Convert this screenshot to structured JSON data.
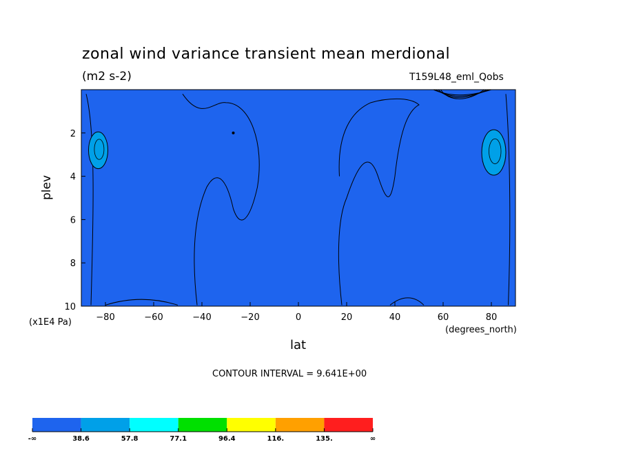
{
  "chart_data": {
    "type": "contour",
    "title": "zonal wind variance transient mean merdional",
    "units": "(m2 s-2)",
    "run_label": "T159L48_eml_Qobs",
    "xlabel": "lat",
    "x_unit": "(degrees_north)",
    "ylabel": "plev",
    "y_unit": "(x1E4 Pa)",
    "xlim": [
      -90,
      90
    ],
    "ylim": [
      0,
      10
    ],
    "y_inverted": true,
    "x_ticks": [
      -80,
      -60,
      -40,
      -20,
      0,
      20,
      40,
      60,
      80
    ],
    "y_ticks": [
      2,
      4,
      6,
      8,
      10
    ],
    "contour_interval_text": "CONTOUR INTERVAL = 9.641E+00",
    "levels": [
      38.6,
      57.8,
      77.1,
      96.4,
      116,
      135
    ],
    "colorbar": {
      "labels": [
        "-∞",
        "38.6",
        "57.8",
        "77.1",
        "96.4",
        "116.",
        "135.",
        "∞"
      ],
      "colors": [
        "#1e64ee",
        "#00a0e8",
        "#00ffff",
        "#00e000",
        "#ffff00",
        "#ffa000",
        "#ff1e1e"
      ]
    },
    "background_color": "#1e64ee",
    "highlighted_regions": [
      {
        "description": "variance 38.6-57.8",
        "lat_center": -83,
        "plev_center": 2.8,
        "lat_halfwidth": 4,
        "plev_halfwidth": 0.85
      },
      {
        "description": "variance 38.6-57.8",
        "lat_center": 81,
        "plev_center": 2.9,
        "lat_halfwidth": 5,
        "plev_halfwidth": 1.05
      }
    ]
  }
}
